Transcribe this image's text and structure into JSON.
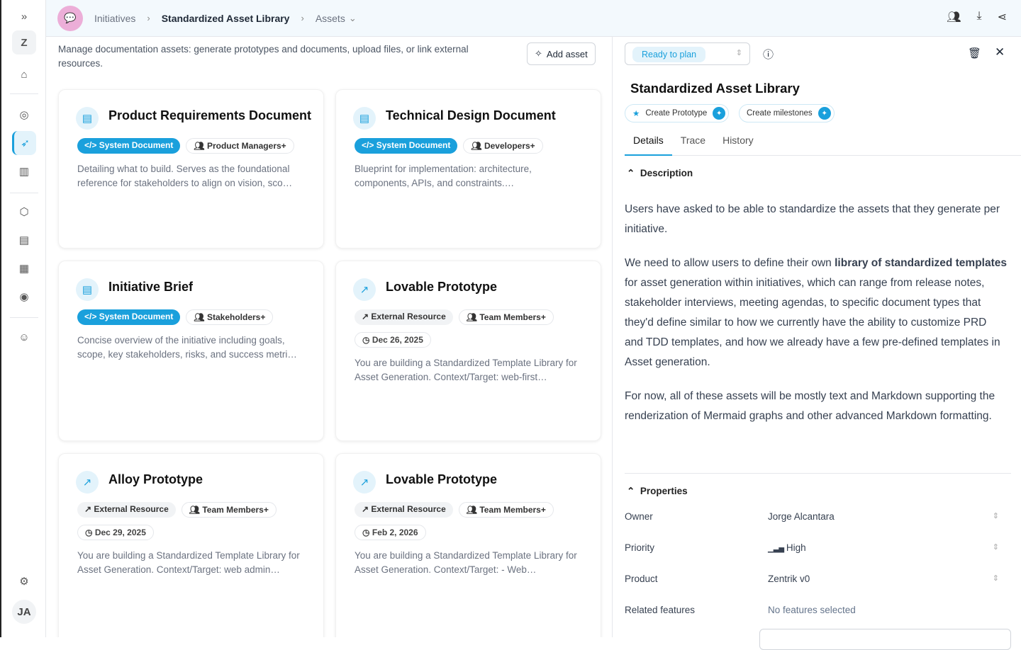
{
  "sidebar": {
    "workspace": "Z",
    "user": "JA"
  },
  "header": {
    "breadcrumb": [
      "Initiatives",
      "Standardized Asset Library",
      "Assets"
    ]
  },
  "main": {
    "description": "Manage documentation assets: generate prototypes and documents, upload files, or link external resources.",
    "add_label": "Add asset",
    "cards": [
      {
        "title": "Product Requirements Document",
        "type": "System Document",
        "audience": "Product Managers+",
        "text": "Detailing what to build. Serves as the foundational reference for stakeholders to align on vision, sco…"
      },
      {
        "title": "Technical Design Document",
        "type": "System Document",
        "audience": "Developers+",
        "text": "Blueprint for implementation: architecture, components, APIs, and constraints.…"
      },
      {
        "title": "Initiative Brief",
        "type": "System Document",
        "audience": "Stakeholders+",
        "text": "Concise overview of the initiative including goals, scope, key stakeholders, risks, and success metri…"
      },
      {
        "title": "Lovable Prototype",
        "type": "External Resource",
        "audience": "Team Members+",
        "date": "Dec 26, 2025",
        "text": "You are building a Standardized Template Library for Asset Generation. Context/Target: web-first…"
      },
      {
        "title": "Alloy Prototype",
        "type": "External Resource",
        "audience": "Team Members+",
        "date": "Dec 29, 2025",
        "text": "You are building a Standardized Template Library for Asset Generation. Context/Target: web admin…"
      },
      {
        "title": "Lovable Prototype",
        "type": "External Resource",
        "audience": "Team Members+",
        "date": "Feb 2, 2026",
        "text": "You are building a Standardized Template Library for Asset Generation. Context/Target: - Web…"
      }
    ]
  },
  "panel": {
    "status": "Ready to plan",
    "title": "Standardized Asset Library",
    "chips": [
      "Create Prototype",
      "Create milestones"
    ],
    "tabs": [
      "Details",
      "Trace",
      "History"
    ],
    "description_heading": "Description",
    "paragraphs": [
      "Users have asked to be able to standardize the assets that they generate per initiative.",
      "For now, all of these assets will be mostly text and Markdown supporting the renderization of Mermaid graphs and other advanced Markdown formatting."
    ],
    "p2": {
      "a": "We need to allow users to define their own ",
      "b": "library of standardized templates",
      "c": " for asset generation within initiatives, which can range from release notes, stakeholder interviews, meeting agendas, to specific document types that they'd define similar to how we currently have the ability to customize PRD and TDD templates, and how we already have a few pre-defined templates in Asset generation."
    },
    "properties_heading": "Properties",
    "properties": [
      {
        "label": "Owner",
        "value": "Jorge Alcantara"
      },
      {
        "label": "Priority",
        "value": "High"
      },
      {
        "label": "Product",
        "value": "Zentrik v0"
      },
      {
        "label": "Related features",
        "value": "No features selected"
      }
    ]
  },
  "colors": {
    "accent": "#1aa0dc"
  }
}
